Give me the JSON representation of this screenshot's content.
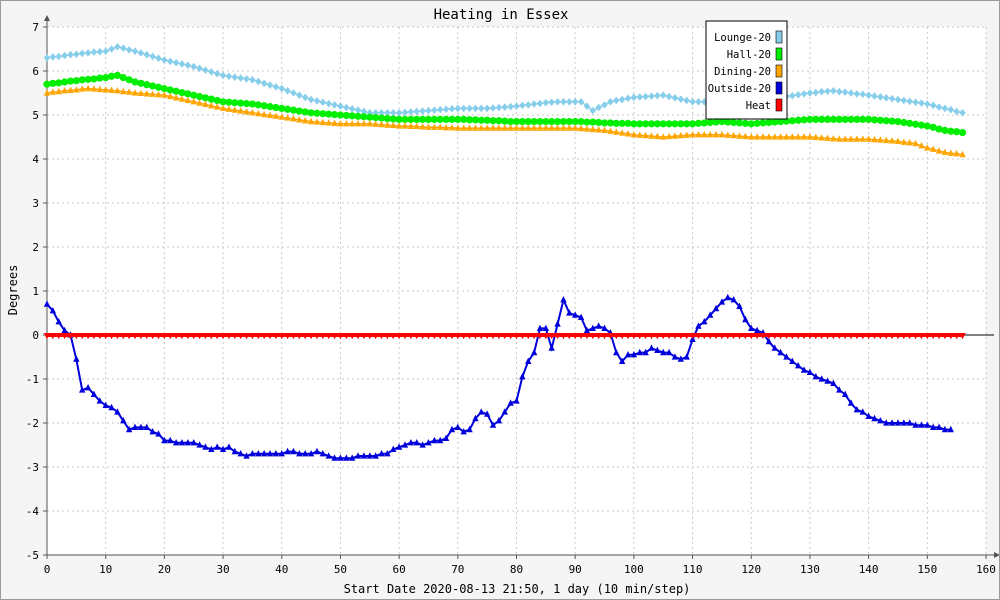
{
  "chart_data": {
    "type": "line",
    "title": "Heating in Essex",
    "xlabel": "Start Date 2020-08-13 21:50, 1 day (10 min/step)",
    "ylabel": "Degrees",
    "xlim": [
      0,
      160
    ],
    "ylim": [
      -5,
      7
    ],
    "xticks": [
      0,
      10,
      20,
      30,
      40,
      50,
      60,
      70,
      80,
      90,
      100,
      110,
      120,
      130,
      140,
      150,
      160
    ],
    "yticks": [
      -5,
      -4,
      -3,
      -2,
      -1,
      0,
      1,
      2,
      3,
      4,
      5,
      6,
      7
    ],
    "grid": true,
    "legend_position": "top-right",
    "series": [
      {
        "name": "Lounge-20",
        "color": "#87ceeb",
        "marker": "diamond",
        "keypoints": [
          [
            0,
            6.3
          ],
          [
            3,
            6.35
          ],
          [
            6,
            6.4
          ],
          [
            10,
            6.45
          ],
          [
            12,
            6.55
          ],
          [
            15,
            6.45
          ],
          [
            20,
            6.25
          ],
          [
            25,
            6.1
          ],
          [
            30,
            5.9
          ],
          [
            35,
            5.8
          ],
          [
            40,
            5.6
          ],
          [
            45,
            5.35
          ],
          [
            50,
            5.2
          ],
          [
            55,
            5.05
          ],
          [
            60,
            5.05
          ],
          [
            65,
            5.1
          ],
          [
            70,
            5.15
          ],
          [
            75,
            5.15
          ],
          [
            80,
            5.2
          ],
          [
            83,
            5.25
          ],
          [
            87,
            5.3
          ],
          [
            91,
            5.3
          ],
          [
            93,
            5.1
          ],
          [
            96,
            5.3
          ],
          [
            100,
            5.4
          ],
          [
            105,
            5.45
          ],
          [
            110,
            5.3
          ],
          [
            115,
            5.3
          ],
          [
            120,
            5.3
          ],
          [
            125,
            5.4
          ],
          [
            130,
            5.5
          ],
          [
            134,
            5.55
          ],
          [
            140,
            5.45
          ],
          [
            145,
            5.35
          ],
          [
            150,
            5.25
          ],
          [
            153,
            5.15
          ],
          [
            156,
            5.05
          ]
        ]
      },
      {
        "name": "Hall-20",
        "color": "#00ee00",
        "marker": "circle",
        "keypoints": [
          [
            0,
            5.7
          ],
          [
            3,
            5.75
          ],
          [
            6,
            5.8
          ],
          [
            10,
            5.85
          ],
          [
            12,
            5.9
          ],
          [
            15,
            5.75
          ],
          [
            20,
            5.6
          ],
          [
            25,
            5.45
          ],
          [
            30,
            5.3
          ],
          [
            35,
            5.25
          ],
          [
            40,
            5.15
          ],
          [
            45,
            5.05
          ],
          [
            50,
            5.0
          ],
          [
            55,
            4.95
          ],
          [
            60,
            4.9
          ],
          [
            70,
            4.9
          ],
          [
            80,
            4.85
          ],
          [
            90,
            4.85
          ],
          [
            100,
            4.8
          ],
          [
            110,
            4.8
          ],
          [
            115,
            4.85
          ],
          [
            120,
            4.8
          ],
          [
            125,
            4.85
          ],
          [
            130,
            4.9
          ],
          [
            135,
            4.9
          ],
          [
            140,
            4.9
          ],
          [
            145,
            4.85
          ],
          [
            150,
            4.75
          ],
          [
            153,
            4.65
          ],
          [
            156,
            4.6
          ]
        ]
      },
      {
        "name": "Dining-20",
        "color": "#ffa500",
        "marker": "triangle",
        "keypoints": [
          [
            0,
            5.5
          ],
          [
            3,
            5.55
          ],
          [
            7,
            5.6
          ],
          [
            12,
            5.55
          ],
          [
            15,
            5.5
          ],
          [
            20,
            5.45
          ],
          [
            25,
            5.3
          ],
          [
            30,
            5.15
          ],
          [
            35,
            5.05
          ],
          [
            40,
            4.95
          ],
          [
            45,
            4.85
          ],
          [
            50,
            4.8
          ],
          [
            55,
            4.8
          ],
          [
            60,
            4.75
          ],
          [
            70,
            4.7
          ],
          [
            80,
            4.7
          ],
          [
            90,
            4.7
          ],
          [
            95,
            4.65
          ],
          [
            100,
            4.55
          ],
          [
            105,
            4.5
          ],
          [
            110,
            4.55
          ],
          [
            115,
            4.55
          ],
          [
            120,
            4.5
          ],
          [
            125,
            4.5
          ],
          [
            130,
            4.5
          ],
          [
            135,
            4.45
          ],
          [
            140,
            4.45
          ],
          [
            145,
            4.4
          ],
          [
            148,
            4.35
          ],
          [
            150,
            4.25
          ],
          [
            153,
            4.15
          ],
          [
            156,
            4.1
          ]
        ]
      },
      {
        "name": "Outside-20",
        "color": "#0000dd",
        "marker": "triangle",
        "values": [
          0.7,
          0.55,
          0.3,
          0.1,
          0.0,
          -0.55,
          -1.25,
          -1.2,
          -1.35,
          -1.5,
          -1.6,
          -1.65,
          -1.75,
          -1.95,
          -2.15,
          -2.1,
          -2.1,
          -2.1,
          -2.2,
          -2.25,
          -2.4,
          -2.4,
          -2.45,
          -2.45,
          -2.45,
          -2.45,
          -2.5,
          -2.55,
          -2.6,
          -2.55,
          -2.6,
          -2.55,
          -2.65,
          -2.7,
          -2.75,
          -2.7,
          -2.7,
          -2.7,
          -2.7,
          -2.7,
          -2.7,
          -2.65,
          -2.65,
          -2.7,
          -2.7,
          -2.7,
          -2.65,
          -2.7,
          -2.75,
          -2.8,
          -2.8,
          -2.8,
          -2.8,
          -2.75,
          -2.75,
          -2.75,
          -2.75,
          -2.7,
          -2.7,
          -2.6,
          -2.55,
          -2.5,
          -2.45,
          -2.45,
          -2.5,
          -2.45,
          -2.4,
          -2.4,
          -2.35,
          -2.15,
          -2.1,
          -2.2,
          -2.15,
          -1.9,
          -1.75,
          -1.8,
          -2.05,
          -1.95,
          -1.75,
          -1.55,
          -1.5,
          -0.95,
          -0.6,
          -0.4,
          0.15,
          0.15,
          -0.3,
          0.25,
          0.8,
          0.5,
          0.45,
          0.4,
          0.1,
          0.15,
          0.2,
          0.15,
          0.05,
          -0.4,
          -0.6,
          -0.45,
          -0.45,
          -0.4,
          -0.4,
          -0.3,
          -0.35,
          -0.4,
          -0.4,
          -0.5,
          -0.55,
          -0.5,
          -0.1,
          0.2,
          0.3,
          0.45,
          0.6,
          0.75,
          0.85,
          0.8,
          0.65,
          0.35,
          0.15,
          0.1,
          0.05,
          -0.15,
          -0.3,
          -0.4,
          -0.5,
          -0.6,
          -0.7,
          -0.8,
          -0.85,
          -0.95,
          -1.0,
          -1.05,
          -1.1,
          -1.25,
          -1.35,
          -1.55,
          -1.7,
          -1.75,
          -1.85,
          -1.9,
          -1.95,
          -2.0,
          -2.0,
          -2.0,
          -2.0,
          -2.0,
          -2.05,
          -2.05,
          -2.05,
          -2.1,
          -2.1,
          -2.15,
          -2.15
        ]
      },
      {
        "name": "Heat",
        "color": "#ff0000",
        "marker": "triangle-down",
        "keypoints": [
          [
            0,
            0
          ],
          [
            156,
            0
          ]
        ]
      }
    ]
  }
}
